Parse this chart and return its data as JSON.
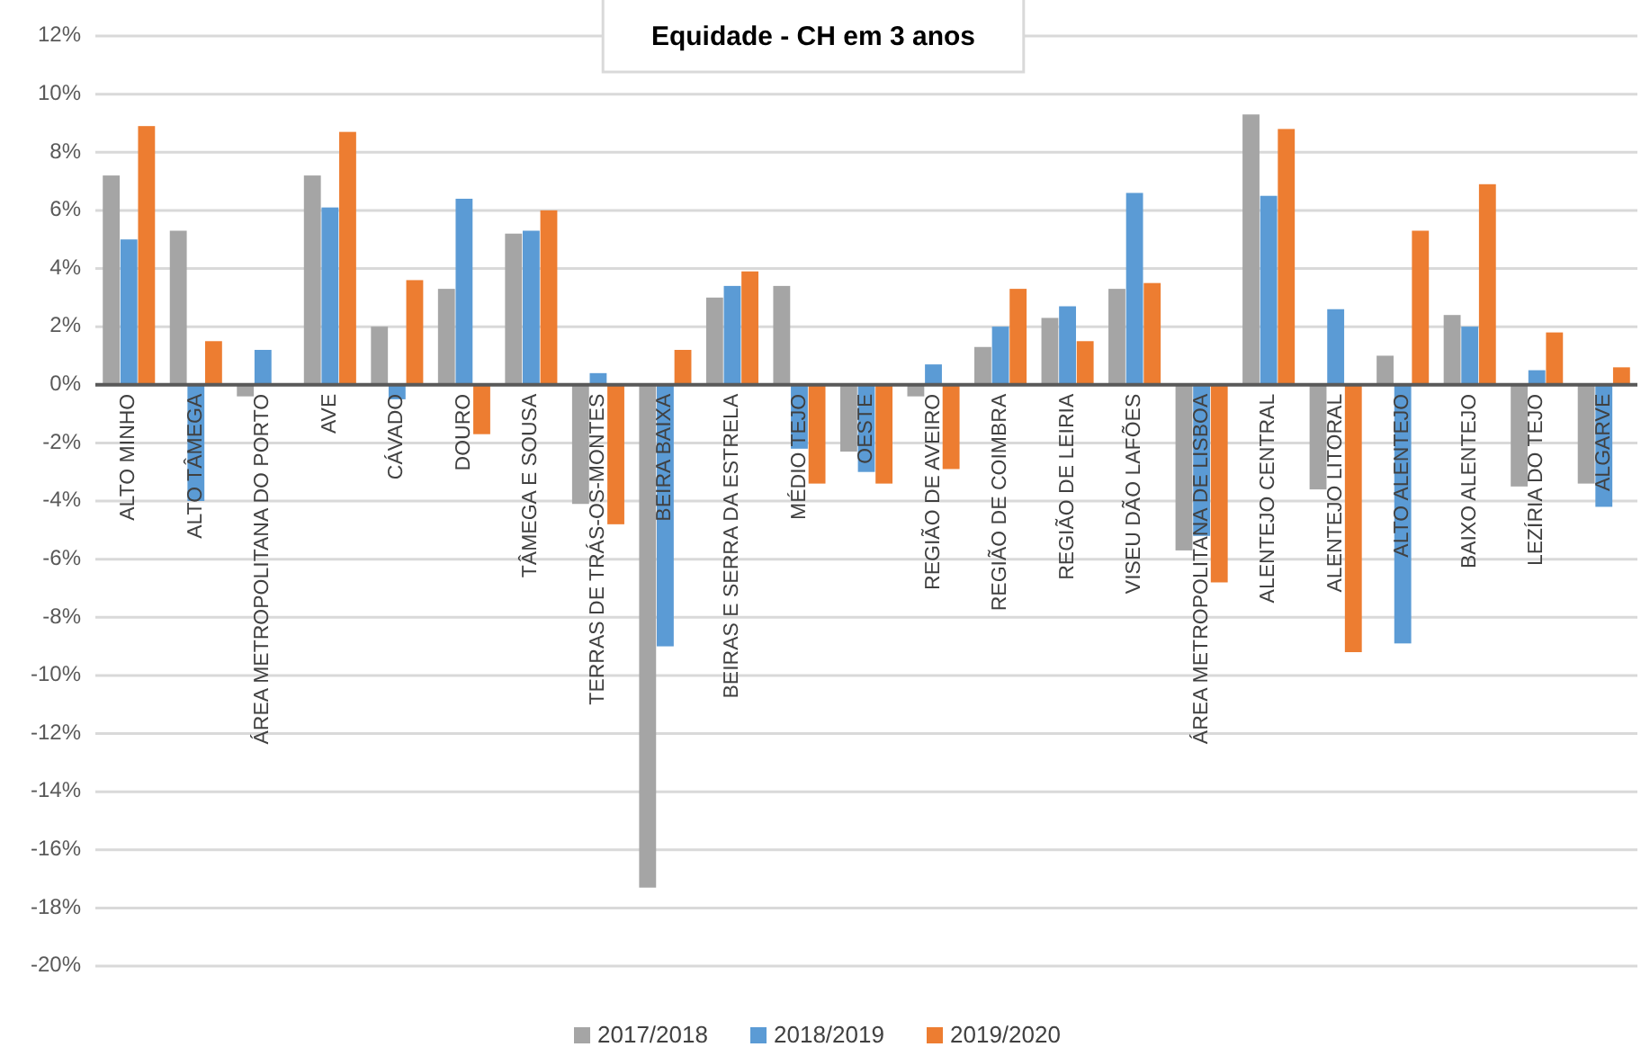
{
  "chart_data": {
    "type": "bar",
    "title": "Equidade - CH em 3 anos",
    "categories": [
      "ALTO MINHO",
      "ALTO TÂMEGA",
      "ÁREA METROPOLITANA DO PORTO",
      "AVE",
      "CÁVADO",
      "DOURO",
      "TÂMEGA E SOUSA",
      "TERRAS DE TRÁS-OS-MONTES",
      "BEIRA BAIXA",
      "BEIRAS E SERRA DA ESTRELA",
      "MÉDIO TEJO",
      "OESTE",
      "REGIÃO DE AVEIRO",
      "REGIÃO DE COIMBRA",
      "REGIÃO DE LEIRIA",
      "VISEU DÃO LAFÕES",
      "ÁREA METROPOLITANA DE LISBOA",
      "ALENTEJO CENTRAL",
      "ALENTEJO LITORAL",
      "ALTO ALENTEJO",
      "BAIXO ALENTEJO",
      "LEZÍRIA DO TEJO",
      "ALGARVE"
    ],
    "series": [
      {
        "name": "2017/2018",
        "color": "#a5a5a5",
        "values": [
          7.2,
          5.3,
          -0.4,
          7.2,
          2.0,
          3.3,
          5.2,
          -4.1,
          -17.3,
          3.0,
          3.4,
          -2.3,
          -0.4,
          1.3,
          2.3,
          3.3,
          -5.7,
          9.3,
          -3.6,
          1.0,
          2.4,
          -3.5,
          -3.4
        ]
      },
      {
        "name": "2018/2019",
        "color": "#5b9bd5",
        "values": [
          5.0,
          -4.0,
          1.2,
          6.1,
          -0.5,
          6.4,
          5.3,
          0.4,
          -9.0,
          3.4,
          -2.2,
          -3.0,
          0.7,
          2.0,
          2.7,
          6.6,
          -5.2,
          6.5,
          2.6,
          -8.9,
          2.0,
          0.5,
          -4.2
        ]
      },
      {
        "name": "2019/2020",
        "color": "#ed7d31",
        "values": [
          8.9,
          1.5,
          null,
          8.7,
          3.6,
          -1.7,
          6.0,
          -4.8,
          1.2,
          3.9,
          -3.4,
          -3.4,
          -2.9,
          3.3,
          1.5,
          3.5,
          -6.8,
          8.8,
          -9.2,
          5.3,
          6.9,
          1.8,
          0.6
        ]
      }
    ],
    "ylim": [
      -20,
      12
    ],
    "yticks": [
      {
        "value": -20,
        "label": "-20%"
      },
      {
        "value": -18,
        "label": "-18%"
      },
      {
        "value": -16,
        "label": "-16%"
      },
      {
        "value": -14,
        "label": "-14%"
      },
      {
        "value": -12,
        "label": "-12%"
      },
      {
        "value": -10,
        "label": "-10%"
      },
      {
        "value": -8,
        "label": "-8%"
      },
      {
        "value": -6,
        "label": "-6%"
      },
      {
        "value": -4,
        "label": "-4%"
      },
      {
        "value": -2,
        "label": "-2%"
      },
      {
        "value": 0,
        "label": "0%"
      },
      {
        "value": 2,
        "label": "2%"
      },
      {
        "value": 4,
        "label": "4%"
      },
      {
        "value": 6,
        "label": "6%"
      },
      {
        "value": 8,
        "label": "8%"
      },
      {
        "value": 10,
        "label": "10%"
      },
      {
        "value": 12,
        "label": "12%"
      }
    ],
    "grid": "y",
    "legend": "bottom"
  }
}
